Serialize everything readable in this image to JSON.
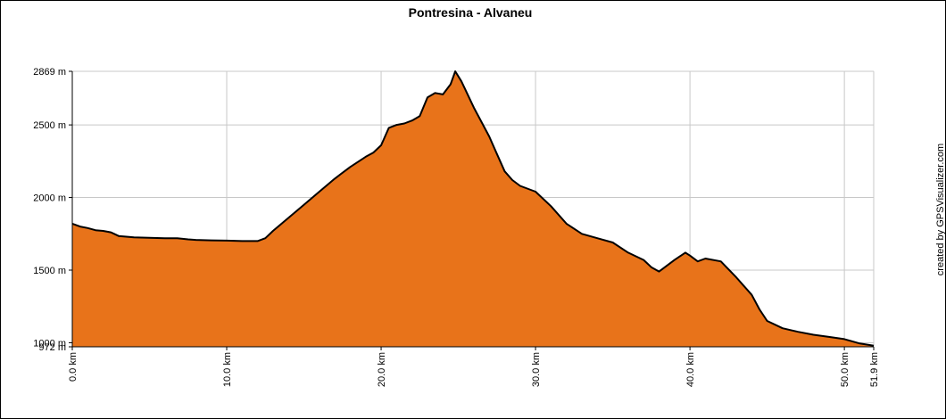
{
  "chart_data": {
    "type": "area",
    "title": "Pontresina - Alvaneu",
    "credit": "created by GPSVisualizer.com",
    "xlim": [
      0,
      51.9
    ],
    "ylim": [
      972,
      2869
    ],
    "y_ticks": [
      {
        "value": 2869,
        "label": "2869 m"
      },
      {
        "value": 2500,
        "label": "2500 m"
      },
      {
        "value": 2000,
        "label": "2000 m"
      },
      {
        "value": 1500,
        "label": "1500 m"
      },
      {
        "value": 1000,
        "label": "1000 m"
      },
      {
        "value": 972,
        "label": "972 m"
      }
    ],
    "x_ticks": [
      {
        "value": 0,
        "label": "0.0 km"
      },
      {
        "value": 10,
        "label": "10.0 km"
      },
      {
        "value": 20,
        "label": "20.0 km"
      },
      {
        "value": 30,
        "label": "30.0 km"
      },
      {
        "value": 40,
        "label": "40.0 km"
      },
      {
        "value": 50,
        "label": "50.0 km"
      },
      {
        "value": 51.9,
        "label": "51.9 km"
      }
    ],
    "grid": true,
    "fill_color": "#e8731a",
    "line_color": "#000000",
    "grid_color": "#c8c8c8",
    "x": [
      0,
      0.5,
      1,
      1.5,
      2,
      2.5,
      3,
      4,
      5,
      6,
      6.8,
      7.5,
      8,
      9,
      10,
      11,
      12,
      12.5,
      13,
      14,
      15,
      16,
      17,
      18,
      19,
      19.5,
      20,
      20.5,
      21,
      21.5,
      22,
      22.5,
      23,
      23.5,
      24,
      24.5,
      24.8,
      25.2,
      26,
      27,
      27.5,
      28,
      28.5,
      29,
      30,
      31,
      32,
      33,
      34,
      35,
      36,
      37,
      37.5,
      38,
      39,
      39.7,
      40,
      40.5,
      41,
      42,
      43,
      44,
      44.5,
      45,
      46,
      47,
      48,
      49,
      50,
      51,
      51.9
    ],
    "y": [
      1820,
      1800,
      1790,
      1775,
      1770,
      1760,
      1735,
      1725,
      1722,
      1720,
      1720,
      1712,
      1708,
      1705,
      1703,
      1700,
      1700,
      1720,
      1770,
      1860,
      1950,
      2040,
      2130,
      2210,
      2280,
      2310,
      2360,
      2480,
      2500,
      2510,
      2530,
      2560,
      2690,
      2720,
      2710,
      2780,
      2869,
      2800,
      2620,
      2420,
      2300,
      2180,
      2120,
      2080,
      2040,
      1940,
      1820,
      1750,
      1720,
      1690,
      1620,
      1570,
      1520,
      1490,
      1570,
      1620,
      1600,
      1560,
      1580,
      1560,
      1450,
      1330,
      1230,
      1150,
      1100,
      1075,
      1055,
      1040,
      1025,
      995,
      980
    ]
  }
}
